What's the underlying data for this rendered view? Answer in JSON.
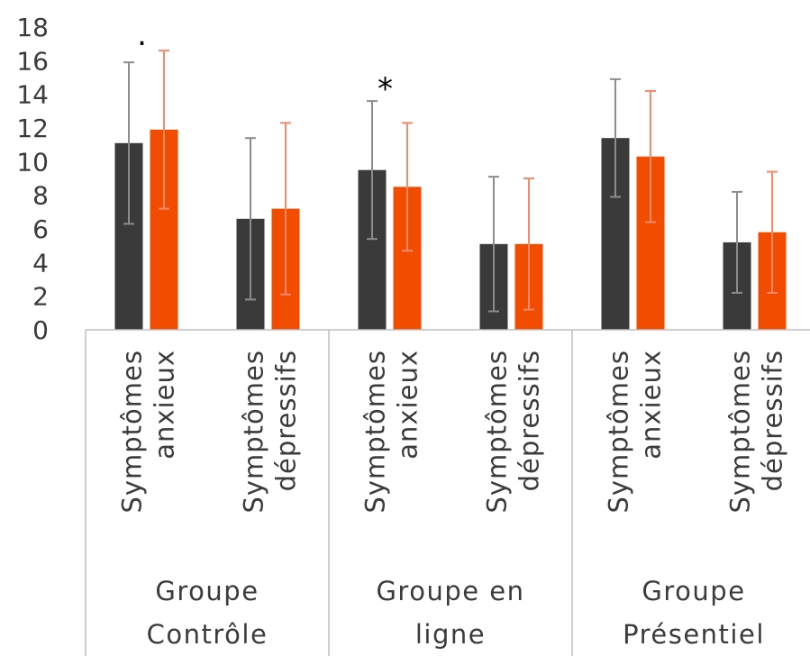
{
  "chart_data": {
    "type": "bar",
    "ylim": [
      0,
      18
    ],
    "y_ticks": [
      0,
      2,
      4,
      6,
      8,
      10,
      12,
      14,
      16,
      18
    ],
    "grid": false,
    "legend": "none",
    "groups": [
      {
        "label_lines": [
          "Groupe",
          "Contrôle"
        ],
        "categories": [
          {
            "label_lines": [
              "Symptômes",
              "anxieux"
            ],
            "values": [
              11.1,
              11.9
            ],
            "errors": [
              4.8,
              4.7
            ],
            "annotation": "."
          },
          {
            "label_lines": [
              "Symptômes",
              "dépressifs"
            ],
            "values": [
              6.6,
              7.2
            ],
            "errors": [
              4.8,
              5.1
            ],
            "annotation": ""
          }
        ]
      },
      {
        "label_lines": [
          "Groupe en",
          "ligne"
        ],
        "categories": [
          {
            "label_lines": [
              "Symptômes",
              "anxieux"
            ],
            "values": [
              9.5,
              8.5
            ],
            "errors": [
              4.1,
              3.8
            ],
            "annotation": "*"
          },
          {
            "label_lines": [
              "Symptômes",
              "dépressifs"
            ],
            "values": [
              5.1,
              5.1
            ],
            "errors": [
              4.0,
              3.9
            ],
            "annotation": ""
          }
        ]
      },
      {
        "label_lines": [
          "Groupe",
          "Présentiel"
        ],
        "categories": [
          {
            "label_lines": [
              "Symptômes",
              "anxieux"
            ],
            "values": [
              11.4,
              10.3
            ],
            "errors": [
              3.5,
              3.9
            ],
            "annotation": ""
          },
          {
            "label_lines": [
              "Symptômes",
              "dépressifs"
            ],
            "values": [
              5.2,
              5.8
            ],
            "errors": [
              3.0,
              3.6
            ],
            "annotation": ""
          }
        ]
      }
    ],
    "series_colors": [
      "#3a3a3a",
      "#f24c00"
    ],
    "error_bar_colors": [
      "#8c8c8c",
      "#f5896b"
    ]
  }
}
